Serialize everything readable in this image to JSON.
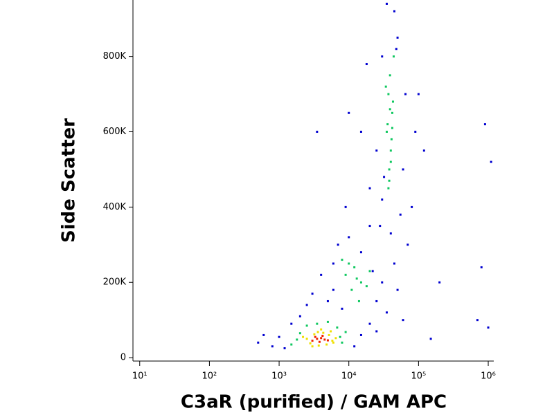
{
  "chart_data": {
    "type": "scatter",
    "xlabel": "C3aR (purified) / GAM APC",
    "ylabel": "Side Scatter",
    "xscale": "log",
    "xlim": [
      8,
      1200000
    ],
    "ylim": [
      -9000,
      950000
    ],
    "xticks": [
      {
        "value": 10,
        "label": "10¹"
      },
      {
        "value": 100,
        "label": "10²"
      },
      {
        "value": 1000,
        "label": "10³"
      },
      {
        "value": 10000,
        "label": "10⁴"
      },
      {
        "value": 100000,
        "label": "10⁵"
      },
      {
        "value": 1000000,
        "label": "10⁶"
      }
    ],
    "yticks": [
      0,
      {
        "value": 200000,
        "label": "200K"
      },
      {
        "value": 400000,
        "label": "400K"
      },
      {
        "value": 600000,
        "label": "600K"
      },
      {
        "value": 800000,
        "label": "800K"
      }
    ],
    "series": [
      {
        "color": "#0000d0",
        "x": [
          500,
          800,
          1200,
          1000,
          600,
          1500,
          2000,
          12000,
          15000,
          20000,
          25000,
          8000,
          5000,
          3000,
          6000,
          4000,
          7000,
          10000,
          15000,
          20000,
          25000,
          30000,
          35000,
          50000,
          60000,
          45000,
          70000,
          80000,
          60000,
          90000,
          100000,
          20000,
          25000,
          15000,
          30000,
          50000,
          45000,
          35000,
          55000,
          30000,
          28000,
          120000,
          10000,
          18000,
          65000,
          3500,
          6000,
          9000,
          2500,
          150000,
          200000,
          900000,
          1100000,
          800000,
          1000000,
          700000,
          40000,
          48000,
          32000,
          22000
        ],
        "values": [
          40000,
          30000,
          25000,
          55000,
          60000,
          90000,
          110000,
          30000,
          60000,
          90000,
          70000,
          130000,
          150000,
          170000,
          250000,
          220000,
          300000,
          320000,
          280000,
          350000,
          150000,
          200000,
          120000,
          180000,
          100000,
          250000,
          300000,
          400000,
          500000,
          600000,
          700000,
          450000,
          550000,
          600000,
          800000,
          850000,
          920000,
          940000,
          380000,
          420000,
          350000,
          550000,
          650000,
          780000,
          700000,
          600000,
          180000,
          400000,
          140000,
          50000,
          200000,
          620000,
          520000,
          240000,
          80000,
          100000,
          330000,
          820000,
          480000,
          230000
        ]
      },
      {
        "color": "#10c860",
        "x": [
          1800,
          2000,
          7500,
          8000,
          1500,
          6800,
          9000,
          2500,
          3500,
          5000,
          9000,
          12000,
          15000,
          11000,
          20000,
          8000,
          14000,
          18000,
          10000,
          13000,
          38000,
          40000,
          35000,
          42000,
          37000,
          39000,
          41000,
          36000,
          43000,
          40000,
          38000,
          34000,
          44000,
          37000,
          39000,
          42000
        ],
        "values": [
          48000,
          65000,
          55000,
          40000,
          35000,
          80000,
          68000,
          85000,
          90000,
          95000,
          220000,
          240000,
          200000,
          180000,
          230000,
          260000,
          150000,
          190000,
          250000,
          210000,
          500000,
          550000,
          600000,
          650000,
          700000,
          750000,
          580000,
          620000,
          680000,
          520000,
          470000,
          720000,
          800000,
          450000,
          660000,
          610000
        ]
      },
      {
        "color": "#f0e000",
        "x": [
          2500,
          2800,
          3200,
          3600,
          4300,
          5200,
          5800,
          6500,
          3000,
          4800,
          2200,
          4000,
          5500,
          3700,
          6000
        ],
        "values": [
          50000,
          38000,
          62000,
          68000,
          66000,
          60000,
          45000,
          52000,
          30000,
          35000,
          55000,
          75000,
          70000,
          32000,
          40000
        ]
      },
      {
        "color": "#f02000",
        "x": [
          3000,
          3500,
          4000,
          4500,
          3800,
          4200,
          3300,
          5000
        ],
        "values": [
          45000,
          50000,
          52000,
          48000,
          42000,
          58000,
          55000,
          46000
        ]
      }
    ]
  }
}
